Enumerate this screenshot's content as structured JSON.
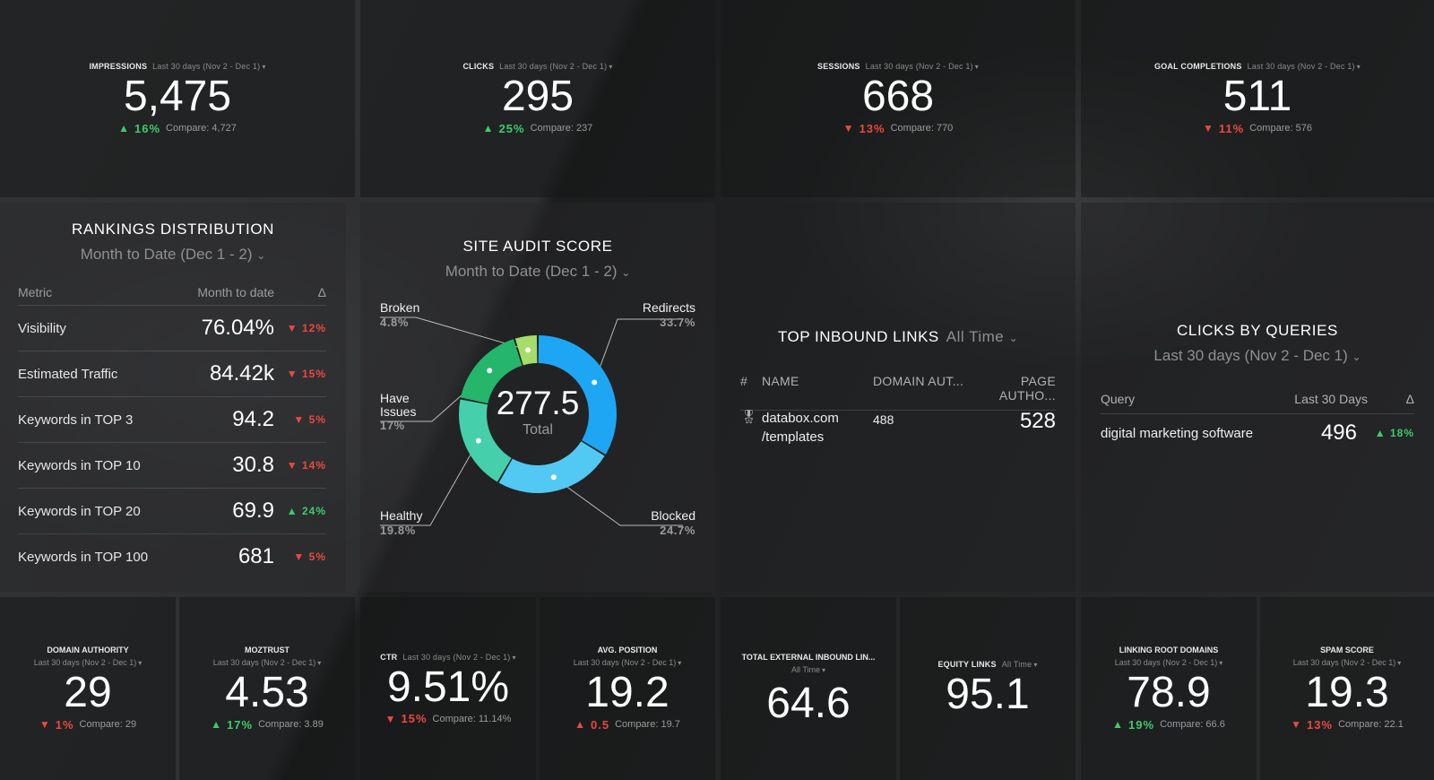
{
  "kpis_top": [
    {
      "title": "IMPRESSIONS",
      "period": "Last 30 days (Nov 2 - Dec 1)",
      "value": "5,475",
      "dir": "up",
      "pct": "16%",
      "compare": "Compare: 4,727"
    },
    {
      "title": "CLICKS",
      "period": "Last 30 days (Nov 2 - Dec 1)",
      "value": "295",
      "dir": "up",
      "pct": "25%",
      "compare": "Compare: 237"
    },
    {
      "title": "SESSIONS",
      "period": "Last 30 days (Nov 2 - Dec 1)",
      "value": "668",
      "dir": "down",
      "pct": "13%",
      "compare": "Compare: 770"
    },
    {
      "title": "GOAL COMPLETIONS",
      "period": "Last 30 days (Nov 2 - Dec 1)",
      "value": "511",
      "dir": "down",
      "pct": "11%",
      "compare": "Compare: 576"
    }
  ],
  "rankings": {
    "title": "RANKINGS DISTRIBUTION",
    "period": "Month to Date (Dec 1 - 2)",
    "headers": {
      "metric": "Metric",
      "value": "Month to date",
      "delta": "Δ"
    },
    "rows": [
      {
        "metric": "Visibility",
        "value": "76.04%",
        "dir": "down",
        "delta": "12%"
      },
      {
        "metric": "Estimated Traffic",
        "value": "84.42k",
        "dir": "down",
        "delta": "15%"
      },
      {
        "metric": "Keywords in TOP 3",
        "value": "94.2",
        "dir": "down",
        "delta": "5%"
      },
      {
        "metric": "Keywords in TOP 10",
        "value": "30.8",
        "dir": "down",
        "delta": "14%"
      },
      {
        "metric": "Keywords in TOP 20",
        "value": "69.9",
        "dir": "up",
        "delta": "24%"
      },
      {
        "metric": "Keywords in TOP 100",
        "value": "681",
        "dir": "down",
        "delta": "5%"
      }
    ]
  },
  "audit": {
    "title": "SITE AUDIT SCORE",
    "period": "Month to Date (Dec 1 - 2)",
    "total": "277.5",
    "total_label": "Total",
    "labels": {
      "broken": {
        "name": "Broken",
        "pct": "4.8%"
      },
      "redirects": {
        "name": "Redirects",
        "pct": "33.7%"
      },
      "have_issues": {
        "name1": "Have",
        "name2": "Issues",
        "pct": "17%"
      },
      "healthy": {
        "name": "Healthy",
        "pct": "19.8%"
      },
      "blocked": {
        "name": "Blocked",
        "pct": "24.7%"
      }
    }
  },
  "chart_data": {
    "type": "pie",
    "title": "SITE AUDIT SCORE",
    "total": 277.5,
    "slices": [
      {
        "name": "Redirects",
        "value": 33.7,
        "color": "#1ea6f5"
      },
      {
        "name": "Blocked",
        "value": 24.7,
        "color": "#52c9f2"
      },
      {
        "name": "Healthy",
        "value": 19.8,
        "color": "#45cfaa"
      },
      {
        "name": "Have Issues",
        "value": 17,
        "color": "#25b66c"
      },
      {
        "name": "Broken",
        "value": 4.8,
        "color": "#a5dc6a"
      }
    ]
  },
  "inbound": {
    "title": "TOP INBOUND LINKS",
    "period": "All Time",
    "headers": {
      "num": "#",
      "name": "NAME",
      "da": "DOMAIN AUT...",
      "pa": "PAGE AUTHO..."
    },
    "row": {
      "name1": "databox.com",
      "name2": "/templates",
      "da": "488",
      "pa": "528"
    }
  },
  "queries": {
    "title": "CLICKS BY QUERIES",
    "period": "Last 30 days (Nov 2 - Dec 1)",
    "headers": {
      "query": "Query",
      "value": "Last 30 Days",
      "delta": "Δ"
    },
    "row": {
      "query": "digital marketing software",
      "value": "496",
      "dir": "up",
      "delta": "18%"
    }
  },
  "kpis_bottom": [
    {
      "title": "DOMAIN AUTHORITY",
      "period": "Last 30 days (Nov 2 - Dec 1)",
      "value": "29",
      "dir": "down",
      "pct": "1%",
      "compare": "Compare: 29"
    },
    {
      "title": "MOZTRUST",
      "period": "Last 30 days (Nov 2 - Dec 1)",
      "value": "4.53",
      "dir": "up",
      "pct": "17%",
      "compare": "Compare: 3.89"
    },
    {
      "title": "CTR",
      "period": "Last 30 days (Nov 2 - Dec 1)",
      "value": "9.51%",
      "dir": "down",
      "pct": "15%",
      "compare": "Compare: 11.14%"
    },
    {
      "title": "AVG. POSITION",
      "period": "Last 30 days (Nov 2 - Dec 1)",
      "value": "19.2",
      "dir": "up",
      "pct": "0.5",
      "compare": "Compare: 19.7"
    },
    {
      "title": "TOTAL EXTERNAL INBOUND LIN...",
      "period": "All Time",
      "value": "64.6"
    },
    {
      "title": "EQUITY LINKS",
      "period": "All Time",
      "value": "95.1"
    },
    {
      "title": "LINKING ROOT DOMAINS",
      "period": "Last 30 days (Nov 2 - Dec 1)",
      "value": "78.9",
      "dir": "up",
      "pct": "19%",
      "compare": "Compare: 66.6"
    },
    {
      "title": "SPAM SCORE",
      "period": "Last 30 days (Nov 2 - Dec 1)",
      "value": "19.3",
      "dir": "down",
      "pct": "13%",
      "compare": "Compare: 22.1"
    }
  ]
}
